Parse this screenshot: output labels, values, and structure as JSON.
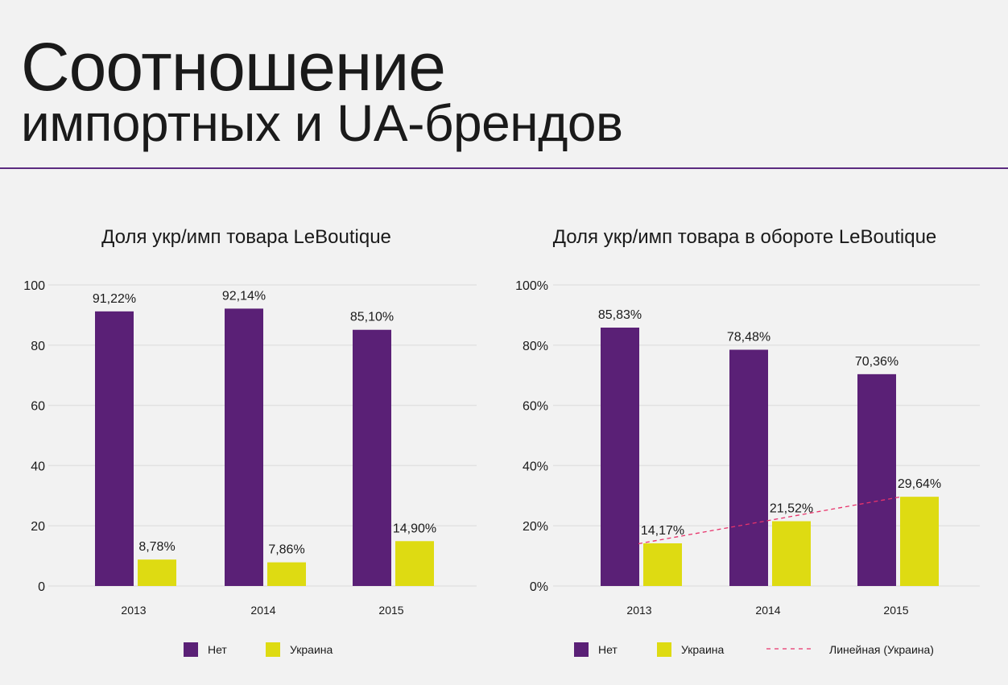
{
  "header": {
    "title_line1": "Соотношение",
    "title_line2": "импортных и UA-брендов"
  },
  "colors": {
    "net": "#5a2076",
    "ukraine": "#dedb12",
    "trend": "#e8336b",
    "divider": "#5b2a80",
    "grid": "#e2e2e2"
  },
  "chart_data": [
    {
      "type": "bar",
      "title": "Доля укр/имп товара LeBoutique",
      "categories": [
        "2013",
        "2014",
        "2015"
      ],
      "series": [
        {
          "name": "Нет",
          "values": [
            91.22,
            92.14,
            85.1
          ],
          "labels": [
            "91,22%",
            "92,14%",
            "85,10%"
          ]
        },
        {
          "name": "Украина",
          "values": [
            8.78,
            7.86,
            14.9
          ],
          "labels": [
            "8,78%",
            "7,86%",
            "14,90%"
          ]
        }
      ],
      "ylim": [
        0,
        100
      ],
      "yticks": [
        "0",
        "20",
        "40",
        "60",
        "80",
        "100"
      ],
      "grid": true,
      "legend": [
        "Нет",
        "Украина"
      ],
      "legend_position": "bottom"
    },
    {
      "type": "bar",
      "title": "Доля укр/имп товара в обороте LeBoutique",
      "categories": [
        "2013",
        "2014",
        "2015"
      ],
      "series": [
        {
          "name": "Нет",
          "values": [
            85.83,
            78.48,
            70.36
          ],
          "labels": [
            "85,83%",
            "78,48%",
            "70,36%"
          ]
        },
        {
          "name": "Украина",
          "values": [
            14.17,
            21.52,
            29.64
          ],
          "labels": [
            "14,17%",
            "21,52%",
            "29,64%"
          ]
        }
      ],
      "trendline": {
        "name": "Линейная (Украина)",
        "of_series": "Украина",
        "type": "linear"
      },
      "ylim": [
        0,
        100
      ],
      "yticks": [
        "0%",
        "20%",
        "40%",
        "60%",
        "80%",
        "100%"
      ],
      "grid": true,
      "legend": [
        "Нет",
        "Украина",
        "Линейная (Украина)"
      ],
      "legend_position": "bottom"
    }
  ]
}
